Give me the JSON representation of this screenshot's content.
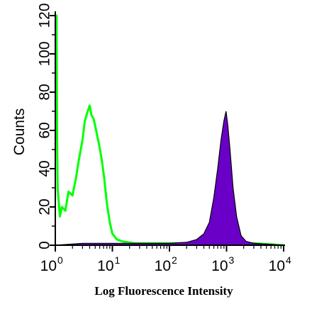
{
  "chart_data": {
    "type": "area",
    "title": "",
    "xlabel": "Log Fluorescence Intensity",
    "ylabel": "Counts",
    "x_scale": "log",
    "xlim": [
      1,
      10000
    ],
    "ylim": [
      0,
      120
    ],
    "grid": false,
    "x_ticks": [
      {
        "value": 1,
        "base": "10",
        "exp": "0"
      },
      {
        "value": 10,
        "base": "10",
        "exp": "1"
      },
      {
        "value": 100,
        "base": "10",
        "exp": "2"
      },
      {
        "value": 1000,
        "base": "10",
        "exp": "3"
      },
      {
        "value": 10000,
        "base": "10",
        "exp": "4"
      }
    ],
    "y_ticks": [
      "0",
      "20",
      "40",
      "60",
      "80",
      "100",
      "120"
    ],
    "series": [
      {
        "style": "outline",
        "color": "#00ff00",
        "points": [
          [
            1.0,
            120
          ],
          [
            1.05,
            120
          ],
          [
            1.07,
            60
          ],
          [
            1.1,
            30
          ],
          [
            1.2,
            15
          ],
          [
            1.3,
            20
          ],
          [
            1.5,
            18
          ],
          [
            1.7,
            28
          ],
          [
            2.0,
            26
          ],
          [
            2.3,
            35
          ],
          [
            2.6,
            45
          ],
          [
            3.0,
            55
          ],
          [
            3.3,
            65
          ],
          [
            3.7,
            70
          ],
          [
            4.0,
            73
          ],
          [
            4.3,
            68
          ],
          [
            4.7,
            66
          ],
          [
            5.2,
            60
          ],
          [
            5.8,
            53
          ],
          [
            6.5,
            45
          ],
          [
            7.2,
            35
          ],
          [
            8.0,
            22
          ],
          [
            9.0,
            12
          ],
          [
            10.0,
            6
          ],
          [
            12.0,
            3
          ],
          [
            15.0,
            2
          ],
          [
            25.0,
            1
          ],
          [
            60.0,
            1
          ],
          [
            150.0,
            1
          ],
          [
            400.0,
            1
          ],
          [
            1000.0,
            1
          ],
          [
            3000.0,
            1
          ],
          [
            10000.0,
            0
          ]
        ]
      },
      {
        "style": "filled",
        "color": "#6a00c8",
        "points": [
          [
            1.0,
            0
          ],
          [
            3.0,
            1
          ],
          [
            8.0,
            1
          ],
          [
            30.0,
            1
          ],
          [
            100.0,
            1
          ],
          [
            200.0,
            1.5
          ],
          [
            300.0,
            3
          ],
          [
            400.0,
            6
          ],
          [
            500.0,
            12
          ],
          [
            600.0,
            25
          ],
          [
            700.0,
            40
          ],
          [
            800.0,
            55
          ],
          [
            900.0,
            65
          ],
          [
            980.0,
            70
          ],
          [
            1050.0,
            63
          ],
          [
            1150.0,
            50
          ],
          [
            1300.0,
            30
          ],
          [
            1500.0,
            15
          ],
          [
            1800.0,
            5
          ],
          [
            2200.0,
            2
          ],
          [
            3000.0,
            1
          ],
          [
            10000.0,
            0
          ]
        ]
      }
    ]
  }
}
